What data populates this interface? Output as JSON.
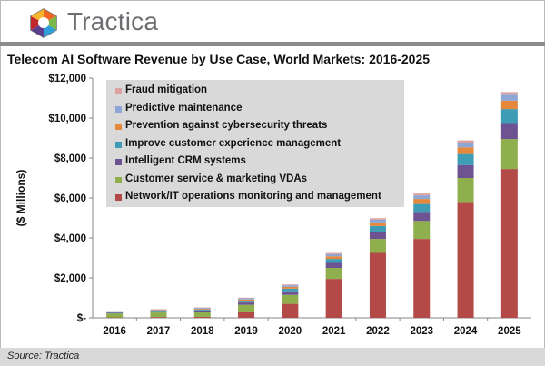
{
  "brand": {
    "name": "Tractica"
  },
  "source": "Source: Tractica",
  "chart_data": {
    "type": "stacked-bar",
    "title": "Telecom AI Software Revenue by Use Case, World Markets: 2016-2025",
    "ylabel": "($ Millions)",
    "xlabel": "",
    "ylim": [
      0,
      12000
    ],
    "yticks": [
      0,
      2000,
      4000,
      6000,
      8000,
      10000,
      12000
    ],
    "ytick_labels": [
      "$-",
      "$2,000",
      "$4,000",
      "$6,000",
      "$8,000",
      "$10,000",
      "$12,000"
    ],
    "categories": [
      "2016",
      "2017",
      "2018",
      "2019",
      "2020",
      "2021",
      "2022",
      "2023",
      "2024",
      "2025"
    ],
    "legend_position": "top-left",
    "series": [
      {
        "name": "Network/IT operations monitoring and management",
        "color": "#b34a47",
        "values": [
          20,
          40,
          50,
          300,
          700,
          1950,
          3250,
          3950,
          5800,
          7450
        ]
      },
      {
        "name": "Customer service & marketing VDAs",
        "color": "#8fae4d",
        "values": [
          200,
          230,
          260,
          350,
          450,
          550,
          700,
          900,
          1200,
          1500
        ]
      },
      {
        "name": "Intelligent CRM systems",
        "color": "#6e5393",
        "values": [
          40,
          50,
          60,
          120,
          180,
          250,
          350,
          450,
          650,
          800
        ]
      },
      {
        "name": "Improve customer experience management",
        "color": "#3e9cb4",
        "values": [
          30,
          40,
          50,
          90,
          130,
          200,
          300,
          400,
          550,
          700
        ]
      },
      {
        "name": "Prevention against cybersecurity threats",
        "color": "#e6883b",
        "values": [
          20,
          30,
          40,
          60,
          90,
          130,
          180,
          250,
          330,
          420
        ]
      },
      {
        "name": "Predictive maintenance",
        "color": "#8da6d6",
        "values": [
          20,
          30,
          40,
          60,
          80,
          110,
          140,
          180,
          240,
          300
        ]
      },
      {
        "name": "Fraud mitigation",
        "color": "#dba09f",
        "values": [
          10,
          15,
          20,
          30,
          40,
          60,
          70,
          90,
          110,
          130
        ]
      }
    ]
  }
}
